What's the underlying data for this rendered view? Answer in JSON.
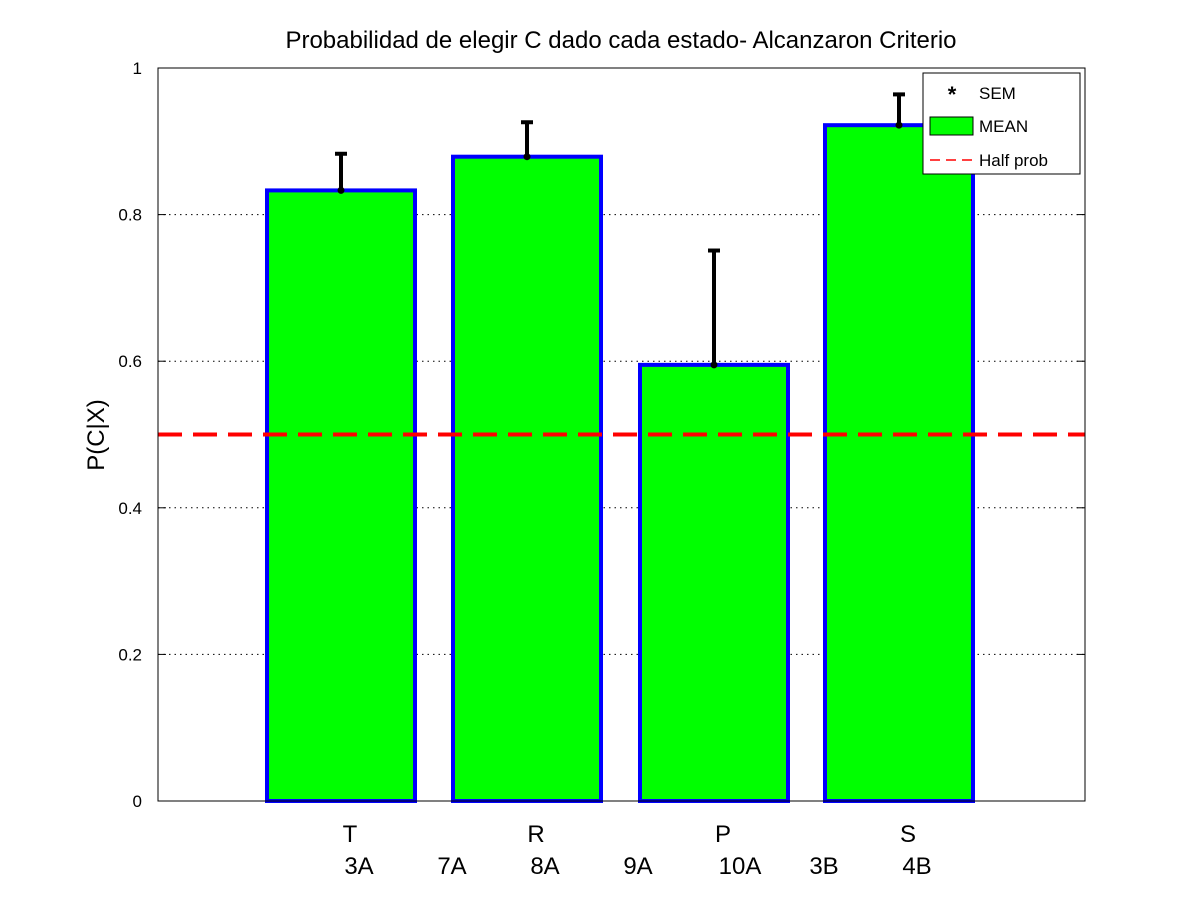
{
  "chart_data": {
    "type": "bar",
    "title": "Probabilidad de elegir C dado cada estado- Alcanzaron Criterio",
    "xlabel": "",
    "ylabel": "P(C|X)",
    "ylim": [
      0,
      1
    ],
    "yticks": [
      "0",
      "0.2",
      "0.4",
      "0.6",
      "0.8",
      "1"
    ],
    "ytick_values": [
      0,
      0.2,
      0.4,
      0.6,
      0.8,
      1
    ],
    "categories": [
      "T",
      "R",
      "P",
      "S"
    ],
    "sub_labels": [
      "3A",
      "7A",
      "8A",
      "9A",
      "10A",
      "3B",
      "4B"
    ],
    "series": [
      {
        "name": "MEAN",
        "values": [
          0.833,
          0.879,
          0.595,
          0.922
        ],
        "color": "#00ff00",
        "edge_color": "#0000ff"
      }
    ],
    "error_bars": {
      "name": "SEM",
      "upper": [
        0.883,
        0.926,
        0.751,
        0.964
      ],
      "color": "#000000"
    },
    "reference_line": {
      "name": "Half prob",
      "y": 0.5,
      "color": "#ff0000",
      "style": "dashed"
    },
    "grid": "y-dotted",
    "legend_position": "top-right",
    "legend": [
      {
        "label": "SEM",
        "marker": "asterisk",
        "color": "#000000"
      },
      {
        "label": "MEAN",
        "marker": "patch",
        "color": "#00ff00"
      },
      {
        "label": "Half prob",
        "marker": "dashed-line",
        "color": "#ff0000"
      }
    ]
  }
}
